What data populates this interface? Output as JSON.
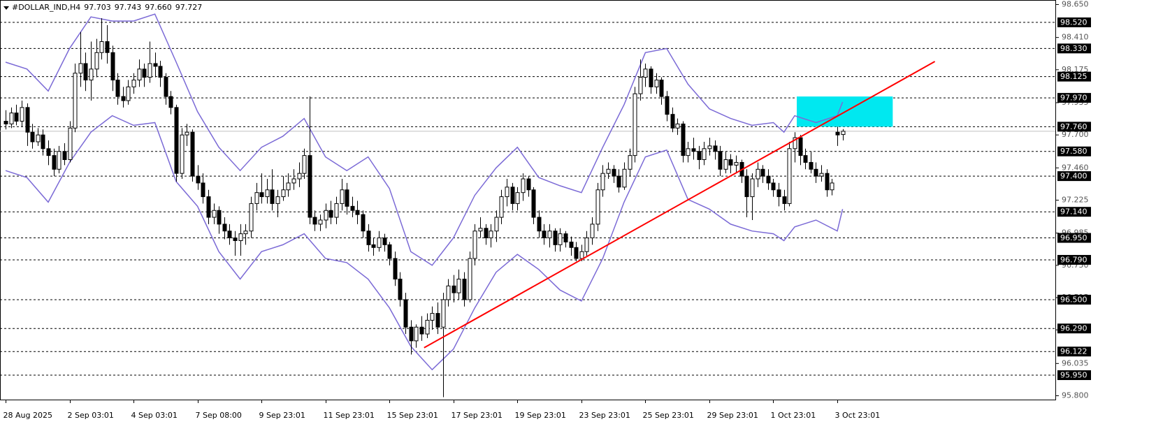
{
  "chart_data": {
    "type": "candlestick",
    "title": "#DOLLAR_IND,H4",
    "last_bar_labels": [
      "97.703",
      "97.743",
      "97.660",
      "97.727"
    ],
    "xlim": [
      -1.05,
      196.9
    ],
    "ylim": [
      95.772,
      98.683
    ],
    "yticks": [
      {
        "value": 98.65,
        "label": "98.650"
      },
      {
        "value": 98.41,
        "label": "98.410"
      },
      {
        "value": 98.175,
        "label": "98.175"
      },
      {
        "value": 97.935,
        "label": "97.935"
      },
      {
        "value": 97.7,
        "label": "97.700"
      },
      {
        "value": 97.46,
        "label": "97.460"
      },
      {
        "value": 97.225,
        "label": "97.225"
      },
      {
        "value": 96.985,
        "label": "96.985"
      },
      {
        "value": 96.75,
        "label": "96.750"
      },
      {
        "value": 96.515,
        "label": "96.515"
      },
      {
        "value": 96.28,
        "label": "96.280"
      },
      {
        "value": 96.035,
        "label": "96.035"
      },
      {
        "value": 95.8,
        "label": "95.800"
      }
    ],
    "xticks": [
      {
        "value": 0,
        "label": "28 Aug 2025"
      },
      {
        "value": 12,
        "label": "2 Sep 03:01"
      },
      {
        "value": 24,
        "label": "4 Sep 03:01"
      },
      {
        "value": 36,
        "label": "7 Sep 08:00"
      },
      {
        "value": 48,
        "label": "9 Sep 23:01"
      },
      {
        "value": 60,
        "label": "11 Sep 23:01"
      },
      {
        "value": 72,
        "label": "15 Sep 23:01"
      },
      {
        "value": 84,
        "label": "17 Sep 23:01"
      },
      {
        "value": 96,
        "label": "19 Sep 23:01"
      },
      {
        "value": 108,
        "label": "23 Sep 23:01"
      },
      {
        "value": 120,
        "label": "25 Sep 23:01"
      },
      {
        "value": 132,
        "label": "29 Sep 23:01"
      },
      {
        "value": 144,
        "label": "1 Oct 23:01"
      },
      {
        "value": 156,
        "label": "3 Oct 23:01"
      }
    ],
    "levels": [
      {
        "value": 98.52,
        "label": "98.520"
      },
      {
        "value": 98.33,
        "label": "98.330"
      },
      {
        "value": 98.125,
        "label": "98.125"
      },
      {
        "value": 97.97,
        "label": "97.970"
      },
      {
        "value": 97.76,
        "label": "97.760"
      },
      {
        "value": 97.58,
        "label": "97.580"
      },
      {
        "value": 97.4,
        "label": "97.400"
      },
      {
        "value": 97.14,
        "label": "97.140"
      },
      {
        "value": 96.95,
        "label": "96.950"
      },
      {
        "value": 96.79,
        "label": "96.790"
      },
      {
        "value": 96.5,
        "label": "96.500"
      },
      {
        "value": 96.29,
        "label": "96.290"
      },
      {
        "value": 96.122,
        "label": "96.122"
      },
      {
        "value": 95.95,
        "label": "95.950"
      }
    ],
    "price_line": 97.727,
    "band_color": "#7b6ad6",
    "bands": {
      "index": [
        0,
        4,
        8,
        12,
        16,
        20,
        24,
        28,
        32,
        36,
        40,
        44,
        48,
        52,
        56,
        60,
        64,
        68,
        72,
        76,
        80,
        84,
        88,
        92,
        96,
        100,
        104,
        108,
        112,
        116,
        120,
        124,
        128,
        132,
        136,
        140,
        144,
        146,
        148,
        152,
        156,
        157
      ],
      "upper": [
        98.23,
        98.18,
        98.02,
        98.33,
        98.56,
        98.53,
        98.53,
        98.58,
        98.23,
        97.87,
        97.61,
        97.44,
        97.61,
        97.69,
        97.82,
        97.54,
        97.44,
        97.54,
        97.31,
        96.85,
        96.75,
        96.95,
        97.26,
        97.46,
        97.61,
        97.39,
        97.33,
        97.28,
        97.61,
        97.92,
        98.3,
        98.33,
        98.07,
        97.89,
        97.82,
        97.77,
        97.79,
        97.72,
        97.84,
        97.79,
        97.84,
        97.94
      ],
      "lower": [
        97.44,
        97.39,
        97.21,
        97.5,
        97.72,
        97.84,
        97.77,
        97.79,
        97.36,
        97.18,
        96.85,
        96.65,
        96.85,
        96.9,
        96.98,
        96.8,
        96.77,
        96.65,
        96.44,
        96.16,
        95.99,
        96.14,
        96.44,
        96.7,
        96.83,
        96.72,
        96.57,
        96.49,
        96.8,
        97.21,
        97.54,
        97.59,
        97.23,
        97.16,
        97.05,
        97.0,
        96.98,
        96.93,
        97.03,
        97.08,
        97.0,
        97.16
      ]
    },
    "trendline": {
      "start": [
        78.5,
        96.15
      ],
      "end": [
        174.3,
        98.235
      ],
      "color": "#ff0000"
    },
    "zone": {
      "x": [
        148.4,
        166.4
      ],
      "y": [
        97.76,
        97.98
      ],
      "color": "#00e8f0"
    },
    "ohlc": [
      [
        97.8,
        97.88,
        97.74,
        97.78
      ],
      [
        97.78,
        97.9,
        97.75,
        97.86
      ],
      [
        97.86,
        97.92,
        97.77,
        97.8
      ],
      [
        97.8,
        97.95,
        97.76,
        97.9
      ],
      [
        97.9,
        97.93,
        97.62,
        97.72
      ],
      [
        97.72,
        97.78,
        97.6,
        97.65
      ],
      [
        97.65,
        97.75,
        97.62,
        97.7
      ],
      [
        97.7,
        97.74,
        97.55,
        97.6
      ],
      [
        97.6,
        97.66,
        97.48,
        97.55
      ],
      [
        97.55,
        97.6,
        97.4,
        97.45
      ],
      [
        97.45,
        97.62,
        97.42,
        97.58
      ],
      [
        97.58,
        97.64,
        97.48,
        97.52
      ],
      [
        97.52,
        97.8,
        97.5,
        97.75
      ],
      [
        97.75,
        98.22,
        97.72,
        98.15
      ],
      [
        98.15,
        98.45,
        98.05,
        98.22
      ],
      [
        98.22,
        98.3,
        98.02,
        98.1
      ],
      [
        98.1,
        98.38,
        97.95,
        98.18
      ],
      [
        98.18,
        98.4,
        98.12,
        98.3
      ],
      [
        98.3,
        98.55,
        98.25,
        98.38
      ],
      [
        98.38,
        98.5,
        98.22,
        98.3
      ],
      [
        98.3,
        98.35,
        98.02,
        98.1
      ],
      [
        98.1,
        98.15,
        97.92,
        97.98
      ],
      [
        97.98,
        98.05,
        97.9,
        97.95
      ],
      [
        97.95,
        98.1,
        97.92,
        98.05
      ],
      [
        98.05,
        98.15,
        98.0,
        98.1
      ],
      [
        98.1,
        98.25,
        98.05,
        98.18
      ],
      [
        98.18,
        98.22,
        98.05,
        98.12
      ],
      [
        98.12,
        98.38,
        98.08,
        98.22
      ],
      [
        98.22,
        98.3,
        98.12,
        98.2
      ],
      [
        98.2,
        98.24,
        98.05,
        98.12
      ],
      [
        98.12,
        98.15,
        97.92,
        97.98
      ],
      [
        97.98,
        98.02,
        97.85,
        97.9
      ],
      [
        97.9,
        97.92,
        97.36,
        97.42
      ],
      [
        97.42,
        97.75,
        97.38,
        97.7
      ],
      [
        97.7,
        97.78,
        97.62,
        97.72
      ],
      [
        97.72,
        97.74,
        97.36,
        97.4
      ],
      [
        97.4,
        97.48,
        97.3,
        97.35
      ],
      [
        97.35,
        97.42,
        97.2,
        97.25
      ],
      [
        97.25,
        97.3,
        97.05,
        97.1
      ],
      [
        97.1,
        97.2,
        97.05,
        97.15
      ],
      [
        97.15,
        97.18,
        96.98,
        97.05
      ],
      [
        97.05,
        97.1,
        96.94,
        97.0
      ],
      [
        97.0,
        97.05,
        96.9,
        96.95
      ],
      [
        96.95,
        97.0,
        96.82,
        96.93
      ],
      [
        96.93,
        97.05,
        96.82,
        96.98
      ],
      [
        96.98,
        97.05,
        96.9,
        97.0
      ],
      [
        97.0,
        97.25,
        96.95,
        97.2
      ],
      [
        97.2,
        97.35,
        97.15,
        97.28
      ],
      [
        97.28,
        97.42,
        97.2,
        97.25
      ],
      [
        97.25,
        97.38,
        97.2,
        97.3
      ],
      [
        97.3,
        97.45,
        97.15,
        97.2
      ],
      [
        97.2,
        97.3,
        97.1,
        97.25
      ],
      [
        97.25,
        97.4,
        97.22,
        97.3
      ],
      [
        97.3,
        97.42,
        97.25,
        97.35
      ],
      [
        97.35,
        97.45,
        97.3,
        97.38
      ],
      [
        97.38,
        97.5,
        97.32,
        97.42
      ],
      [
        97.42,
        97.6,
        97.38,
        97.55
      ],
      [
        97.55,
        97.98,
        97.05,
        97.1
      ],
      [
        97.1,
        97.15,
        97.0,
        97.05
      ],
      [
        97.05,
        97.12,
        97.0,
        97.08
      ],
      [
        97.08,
        97.2,
        97.02,
        97.15
      ],
      [
        97.15,
        97.22,
        97.05,
        97.1
      ],
      [
        97.1,
        97.25,
        97.05,
        97.2
      ],
      [
        97.2,
        97.38,
        97.15,
        97.3
      ],
      [
        97.3,
        97.35,
        97.12,
        97.18
      ],
      [
        97.18,
        97.25,
        97.1,
        97.15
      ],
      [
        97.15,
        97.22,
        97.05,
        97.12
      ],
      [
        97.12,
        97.15,
        96.95,
        97.0
      ],
      [
        97.0,
        97.05,
        96.85,
        96.9
      ],
      [
        96.9,
        96.95,
        96.82,
        96.88
      ],
      [
        96.88,
        97.0,
        96.85,
        96.95
      ],
      [
        96.95,
        96.98,
        96.85,
        96.9
      ],
      [
        96.9,
        96.92,
        96.75,
        96.8
      ],
      [
        96.8,
        96.85,
        96.6,
        96.65
      ],
      [
        96.65,
        96.7,
        96.45,
        96.5
      ],
      [
        96.5,
        96.55,
        96.25,
        96.3
      ],
      [
        96.3,
        96.35,
        96.1,
        96.2
      ],
      [
        96.2,
        96.32,
        96.15,
        96.3
      ],
      [
        96.3,
        96.38,
        96.2,
        96.25
      ],
      [
        96.25,
        96.4,
        96.22,
        96.35
      ],
      [
        96.35,
        96.45,
        96.28,
        96.4
      ],
      [
        96.4,
        96.48,
        96.25,
        96.3
      ],
      [
        96.3,
        96.55,
        95.79,
        96.5
      ],
      [
        96.5,
        96.65,
        96.45,
        96.6
      ],
      [
        96.6,
        96.68,
        96.48,
        96.55
      ],
      [
        96.55,
        96.72,
        96.5,
        96.65
      ],
      [
        96.65,
        96.7,
        96.45,
        96.5
      ],
      [
        96.5,
        96.85,
        96.48,
        96.8
      ],
      [
        96.8,
        97.05,
        96.75,
        97.0
      ],
      [
        97.0,
        97.1,
        96.95,
        97.02
      ],
      [
        97.02,
        97.05,
        96.9,
        96.95
      ],
      [
        96.95,
        97.05,
        96.88,
        97.0
      ],
      [
        97.0,
        97.15,
        96.92,
        97.1
      ],
      [
        97.1,
        97.3,
        97.05,
        97.25
      ],
      [
        97.25,
        97.38,
        97.18,
        97.32
      ],
      [
        97.32,
        97.35,
        97.15,
        97.2
      ],
      [
        97.2,
        97.32,
        97.15,
        97.28
      ],
      [
        97.28,
        97.42,
        97.22,
        97.38
      ],
      [
        97.38,
        97.4,
        97.25,
        97.3
      ],
      [
        97.3,
        97.32,
        97.05,
        97.1
      ],
      [
        97.1,
        97.15,
        96.95,
        97.0
      ],
      [
        97.0,
        97.05,
        96.9,
        96.95
      ],
      [
        96.95,
        97.05,
        96.88,
        97.0
      ],
      [
        97.0,
        97.02,
        96.85,
        96.9
      ],
      [
        96.9,
        97.02,
        96.85,
        96.98
      ],
      [
        96.98,
        97.0,
        96.88,
        96.92
      ],
      [
        96.92,
        96.96,
        96.82,
        96.88
      ],
      [
        96.88,
        96.92,
        96.78,
        96.8
      ],
      [
        96.8,
        96.9,
        96.78,
        96.85
      ],
      [
        96.85,
        97.0,
        96.82,
        96.95
      ],
      [
        96.95,
        97.1,
        96.9,
        97.05
      ],
      [
        97.05,
        97.35,
        97.0,
        97.3
      ],
      [
        97.3,
        97.48,
        97.25,
        97.42
      ],
      [
        97.42,
        97.5,
        97.38,
        97.45
      ],
      [
        97.45,
        97.48,
        97.35,
        97.4
      ],
      [
        97.4,
        97.45,
        97.28,
        97.32
      ],
      [
        97.32,
        97.5,
        97.3,
        97.45
      ],
      [
        97.45,
        97.6,
        97.4,
        97.55
      ],
      [
        97.55,
        98.05,
        97.5,
        98.0
      ],
      [
        98.0,
        98.25,
        97.95,
        98.12
      ],
      [
        98.12,
        98.22,
        98.05,
        98.18
      ],
      [
        98.18,
        98.2,
        98.0,
        98.05
      ],
      [
        98.05,
        98.15,
        98.0,
        98.1
      ],
      [
        98.1,
        98.12,
        97.92,
        97.98
      ],
      [
        97.98,
        98.02,
        97.8,
        97.85
      ],
      [
        97.85,
        97.9,
        97.72,
        97.75
      ],
      [
        97.75,
        97.82,
        97.7,
        97.78
      ],
      [
        97.78,
        97.8,
        97.5,
        97.55
      ],
      [
        97.55,
        97.65,
        97.5,
        97.6
      ],
      [
        97.6,
        97.68,
        97.52,
        97.58
      ],
      [
        97.58,
        97.62,
        97.45,
        97.52
      ],
      [
        97.52,
        97.65,
        97.48,
        97.6
      ],
      [
        97.6,
        97.68,
        97.55,
        97.62
      ],
      [
        97.62,
        97.66,
        97.52,
        97.58
      ],
      [
        97.58,
        97.62,
        97.4,
        97.45
      ],
      [
        97.45,
        97.58,
        97.42,
        97.52
      ],
      [
        97.52,
        97.56,
        97.42,
        97.48
      ],
      [
        97.48,
        97.55,
        97.42,
        97.5
      ],
      [
        97.5,
        97.52,
        97.35,
        97.4
      ],
      [
        97.4,
        97.45,
        97.1,
        97.25
      ],
      [
        97.25,
        97.42,
        97.08,
        97.38
      ],
      [
        97.38,
        97.5,
        97.32,
        97.45
      ],
      [
        97.45,
        97.48,
        97.35,
        97.4
      ],
      [
        97.4,
        97.45,
        97.3,
        97.35
      ],
      [
        97.35,
        97.38,
        97.25,
        97.3
      ],
      [
        97.3,
        97.35,
        97.18,
        97.25
      ],
      [
        97.25,
        97.3,
        97.15,
        97.2
      ],
      [
        97.2,
        97.65,
        97.18,
        97.6
      ],
      [
        97.6,
        97.72,
        97.5,
        97.68
      ],
      [
        97.68,
        97.7,
        97.48,
        97.55
      ],
      [
        97.55,
        97.6,
        97.45,
        97.5
      ],
      [
        97.5,
        97.58,
        97.42,
        97.45
      ],
      [
        97.45,
        97.5,
        97.35,
        97.4
      ],
      [
        97.4,
        97.48,
        97.36,
        97.42
      ],
      [
        97.42,
        97.45,
        97.25,
        97.3
      ],
      [
        97.3,
        97.38,
        97.26,
        97.35
      ],
      [
        97.72,
        97.76,
        97.62,
        97.7
      ],
      [
        97.703,
        97.743,
        97.66,
        97.727
      ]
    ]
  }
}
